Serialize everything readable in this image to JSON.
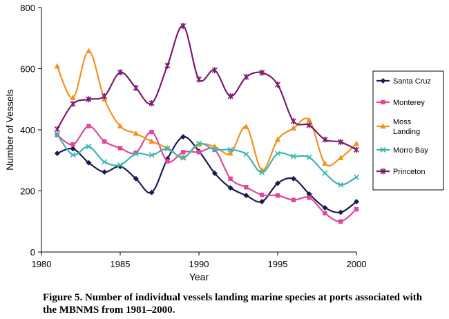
{
  "caption": "Figure 5. Number of individual vessels landing marine species at ports associated with the MBNMS from 1981–2000.",
  "chart_data": {
    "type": "line",
    "xlabel": "Year",
    "ylabel": "Number of Vessels",
    "xlim": [
      1980,
      2000
    ],
    "ylim": [
      0,
      800
    ],
    "x_ticks": [
      1980,
      1985,
      1990,
      1995,
      2000
    ],
    "y_ticks": [
      0,
      200,
      400,
      600,
      800
    ],
    "grid": false,
    "legend_position": "right",
    "x": [
      1981,
      1982,
      1983,
      1984,
      1985,
      1986,
      1987,
      1988,
      1989,
      1990,
      1991,
      1992,
      1993,
      1994,
      1995,
      1996,
      1997,
      1998,
      1999,
      2000
    ],
    "series": [
      {
        "name": "Santa Cruz",
        "label_lines": [
          "Santa Cruz"
        ],
        "color": "#1a1a4e",
        "marker": "diamond",
        "values": [
          323,
          338,
          292,
          262,
          280,
          240,
          195,
          305,
          377,
          330,
          258,
          210,
          185,
          165,
          225,
          240,
          190,
          145,
          130,
          165
        ]
      },
      {
        "name": "Monterey",
        "label_lines": [
          "Monterey"
        ],
        "color": "#e0479a",
        "marker": "square",
        "values": [
          383,
          352,
          412,
          362,
          340,
          325,
          393,
          297,
          327,
          327,
          335,
          240,
          212,
          187,
          185,
          170,
          178,
          127,
          100,
          140
        ]
      },
      {
        "name": "Moss Landing",
        "label_lines": [
          "Moss",
          "Landing"
        ],
        "color": "#f39020",
        "marker": "triangle",
        "values": [
          608,
          505,
          658,
          500,
          412,
          388,
          362,
          340,
          310,
          352,
          345,
          323,
          410,
          268,
          368,
          405,
          432,
          290,
          308,
          355
        ]
      },
      {
        "name": "Morro Bay",
        "label_lines": [
          "Morro Bay"
        ],
        "color": "#3bb4b4",
        "marker": "x",
        "values": [
          385,
          318,
          345,
          295,
          285,
          322,
          317,
          338,
          308,
          355,
          335,
          335,
          320,
          260,
          322,
          313,
          310,
          258,
          220,
          245
        ]
      },
      {
        "name": "Princeton",
        "label_lines": [
          "Princeton"
        ],
        "color": "#7a1a6e",
        "marker": "star",
        "values": [
          402,
          485,
          500,
          510,
          588,
          537,
          487,
          610,
          740,
          565,
          595,
          510,
          573,
          587,
          548,
          428,
          415,
          368,
          360,
          335
        ]
      }
    ]
  }
}
